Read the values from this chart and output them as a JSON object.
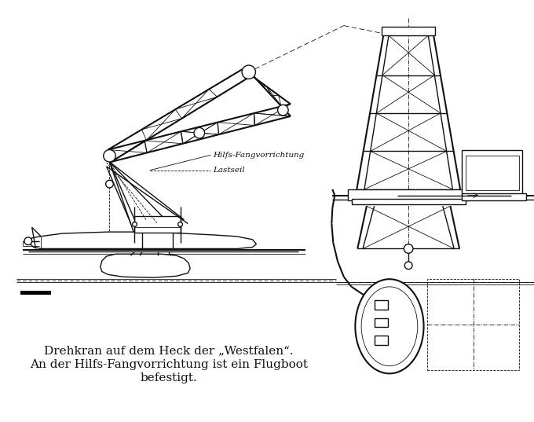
{
  "background_color": "#ffffff",
  "title_lines": [
    "Drehkran auf dem Heck der „Westfalen“.",
    "An der Hilfs-Fangvorrichtung ist ein Flugboot",
    "befestigt."
  ],
  "label1": "Hilfs-Fangvorrichtung",
  "label2": "Lastseil",
  "line_color": "#111111",
  "text_color": "#111111",
  "figsize": [
    6.8,
    5.37
  ],
  "dpi": 100
}
